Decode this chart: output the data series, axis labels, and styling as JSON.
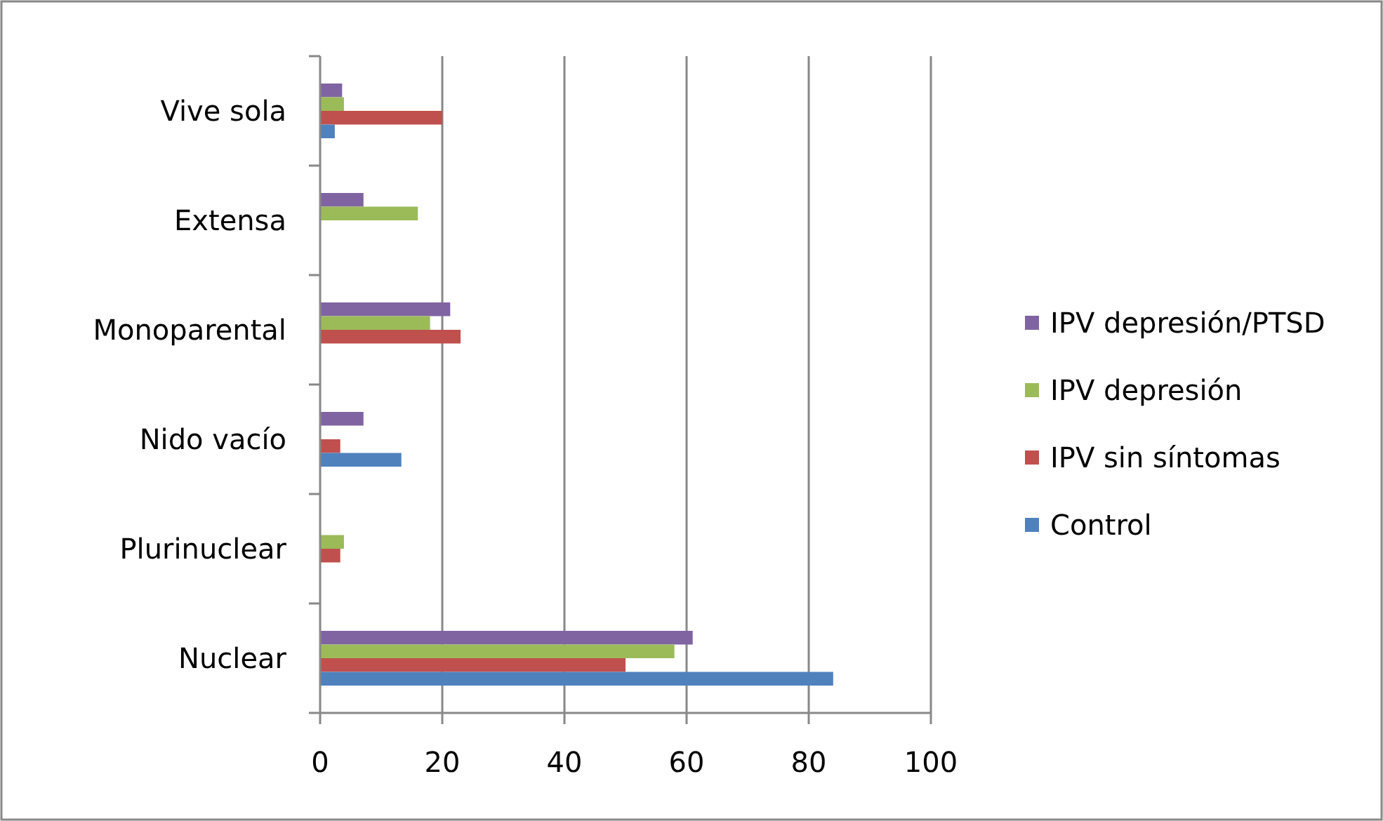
{
  "chart_data": {
    "type": "bar",
    "orientation": "horizontal",
    "categories": [
      "Vive sola",
      "Extensa",
      "Monoparental",
      "Nido vacío",
      "Plurinuclear",
      "Nuclear"
    ],
    "series": [
      {
        "name": "IPV depresión/PTSD",
        "color": "#8064a2",
        "values": [
          3.6,
          7.1,
          21.3,
          7.1,
          null,
          61
        ]
      },
      {
        "name": "IPV depresión",
        "color": "#9bbb59",
        "values": [
          3.9,
          16,
          18,
          null,
          3.9,
          58
        ]
      },
      {
        "name": "IPV sin síntomas",
        "color": "#c0504d",
        "values": [
          20,
          null,
          23,
          3.3,
          3.3,
          50
        ]
      },
      {
        "name": "Control",
        "color": "#4f81bd",
        "values": [
          2.4,
          null,
          null,
          13.3,
          null,
          84
        ]
      }
    ],
    "xlim": [
      0,
      100
    ],
    "xticks": [
      0,
      20,
      40,
      60,
      80,
      100
    ],
    "grid": "x",
    "legend": "right"
  }
}
